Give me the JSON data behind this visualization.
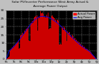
{
  "title1": "Solar PV/Inverter Performance West Array Actual &",
  "title2": "Average Power Output",
  "title_fontsize": 3.2,
  "bg_color": "#c0c0c0",
  "plot_bg_color": "#000000",
  "bar_color": "#cc0000",
  "avg_line_color": "#0000ff",
  "grid_color": "#888888",
  "legend_actual_color": "#ff0000",
  "legend_avg_color": "#0000ff",
  "ylim": [
    0,
    30
  ],
  "ylabel_fontsize": 3.2,
  "xlabel_fontsize": 2.8,
  "ytick_labels": [
    "0",
    "5",
    "10",
    "15",
    "20",
    "25",
    "30"
  ],
  "ytick_vals": [
    0,
    5,
    10,
    15,
    20,
    25,
    30
  ],
  "num_bars": 180,
  "legend_fontsize": 2.8
}
